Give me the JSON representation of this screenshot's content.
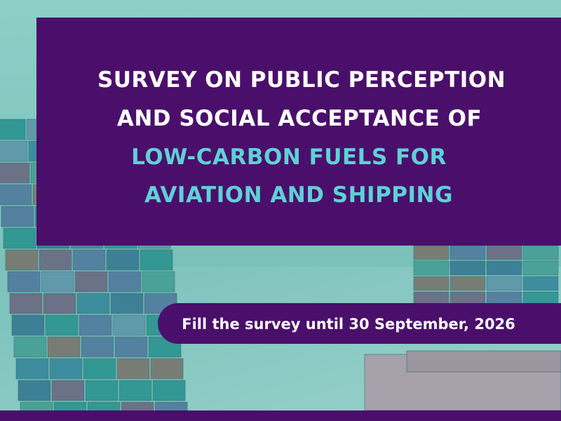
{
  "title": {
    "lines": [
      "SURVEY ON PUBLIC PERCEPTION",
      "AND SOCIAL ACCEPTANCE OF"
    ],
    "highlight": [
      "LOW-CARBON FUELS FOR",
      "AVIATION AND SHIPPING"
    ]
  },
  "deadline": "Fill the survey until 30 September, 2026"
}
